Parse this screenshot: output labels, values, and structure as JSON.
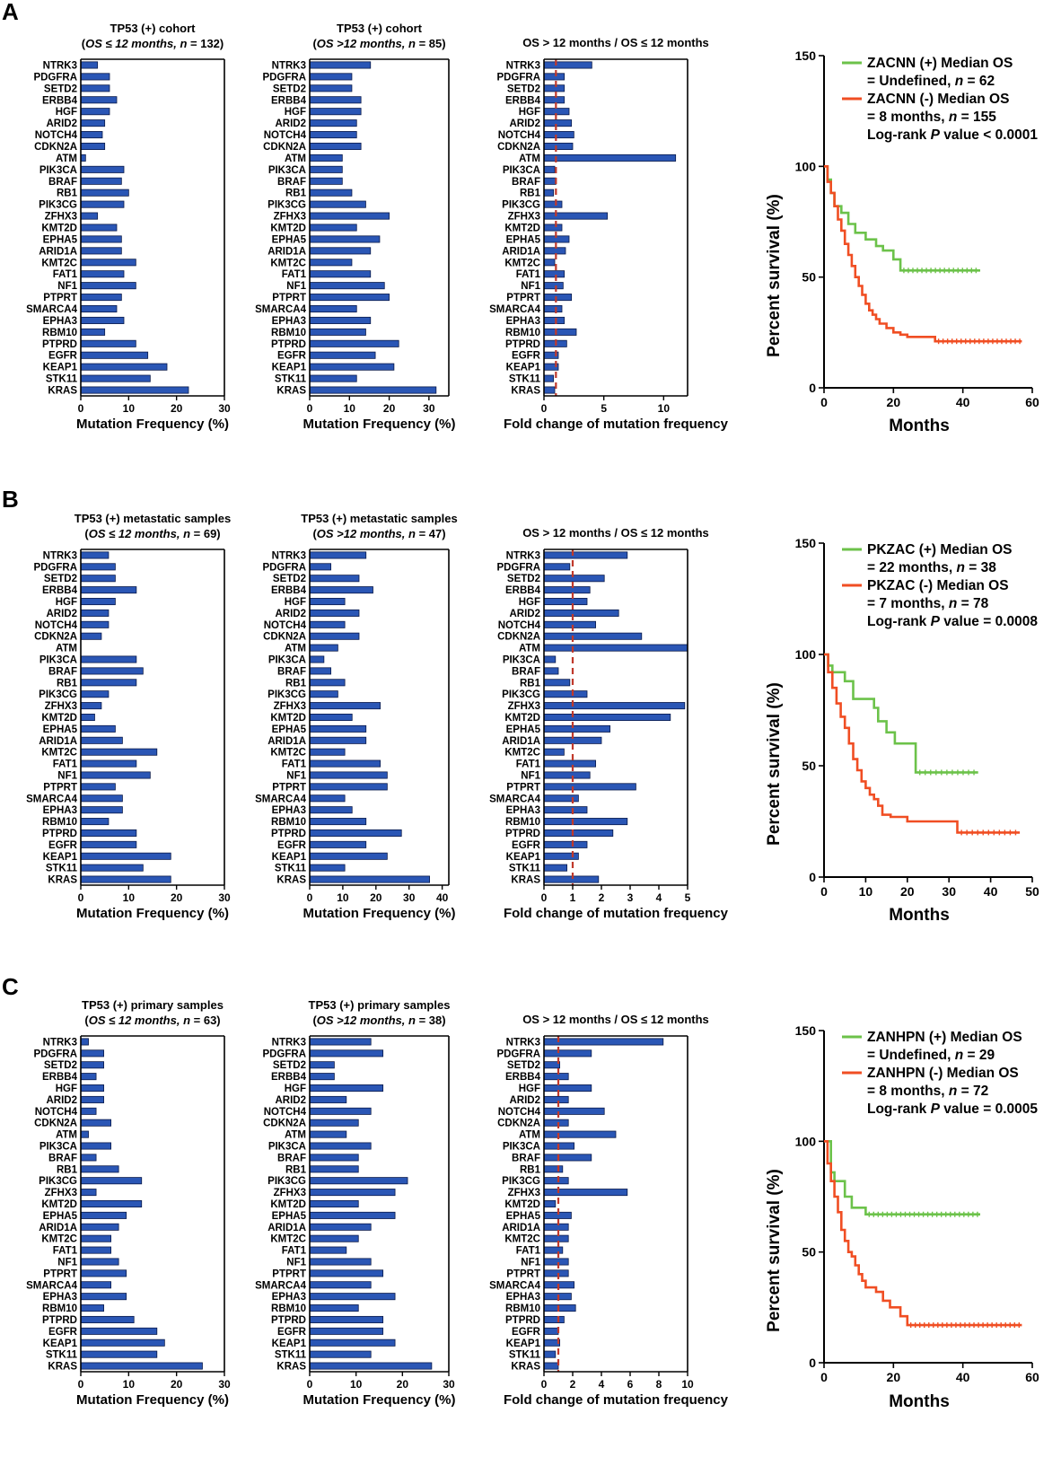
{
  "panels": [
    "A",
    "B",
    "C"
  ],
  "genes": [
    "NTRK3",
    "PDGFRA",
    "SETD2",
    "ERBB4",
    "HGF",
    "ARID2",
    "NOTCH4",
    "CDKN2A",
    "ATM",
    "PIK3CA",
    "BRAF",
    "RB1",
    "PIK3CG",
    "ZFHX3",
    "KMT2D",
    "EPHA5",
    "ARID1A",
    "KMT2C",
    "FAT1",
    "NF1",
    "PTPRT",
    "SMARCA4",
    "EPHA3",
    "RBM10",
    "PTPRD",
    "EGFR",
    "KEAP1",
    "STK11",
    "KRAS"
  ],
  "chart_data": [
    {
      "panel": "A",
      "chart": "bar1",
      "type": "bar",
      "orientation": "horizontal",
      "title_line1": "TP53 (+) cohort",
      "title_line2_italic": "OS ≤ 12 months, n",
      "title_line2_rest": " = 132)",
      "xlabel": "Mutation Frequency (%)",
      "xlim": [
        0,
        30
      ],
      "xticks": [
        "0",
        "10",
        "20",
        "30"
      ],
      "xtick_values": [
        0,
        10,
        20,
        30
      ],
      "values": [
        3.5,
        6,
        6,
        7.5,
        6,
        5,
        4.5,
        5,
        1,
        9,
        8.5,
        10,
        9,
        3.5,
        7.5,
        8.5,
        8.5,
        11.5,
        9,
        11.5,
        8.5,
        7.5,
        9,
        5,
        11.5,
        14,
        18,
        14.5,
        22.5
      ]
    },
    {
      "panel": "A",
      "chart": "bar2",
      "type": "bar",
      "orientation": "horizontal",
      "title_line1": "TP53 (+) cohort",
      "title_line2_italic": "OS >12 months, n",
      "title_line2_rest": " = 85)",
      "xlabel": "Mutation Frequency (%)",
      "xlim": [
        0,
        35
      ],
      "xticks": [
        "0",
        "10",
        "20",
        "30"
      ],
      "xtick_values": [
        0,
        10,
        20,
        30
      ],
      "values": [
        15.3,
        10.6,
        10.6,
        12.9,
        12.9,
        11.8,
        11.8,
        12.9,
        8.2,
        8.2,
        8.2,
        10.6,
        14.1,
        20,
        11.8,
        17.6,
        15.3,
        10.6,
        15.3,
        18.8,
        20,
        11.8,
        15.3,
        14.1,
        22.4,
        16.5,
        21.2,
        11.8,
        31.8
      ]
    },
    {
      "panel": "A",
      "chart": "fold",
      "type": "bar",
      "orientation": "horizontal",
      "title": "OS > 12 months / OS ≤  12 months",
      "xlabel": "Fold change of mutation frequency",
      "xlim": [
        0,
        12
      ],
      "xticks": [
        "0",
        "5",
        "10"
      ],
      "xtick_values": [
        0,
        5,
        10
      ],
      "reference_line": 1,
      "values": [
        4,
        1.7,
        1.7,
        1.7,
        2.1,
        2.3,
        2.5,
        2.4,
        11,
        0.9,
        1,
        0.8,
        1.5,
        5.3,
        1.5,
        2.1,
        1.8,
        0.9,
        1.7,
        1.6,
        2.3,
        1.5,
        1.7,
        2.7,
        1.9,
        1.2,
        1.2,
        0.8,
        0.9
      ]
    },
    {
      "panel": "A",
      "chart": "km",
      "type": "line",
      "xlabel": "Months",
      "ylabel": "Percent survival (%)",
      "xlim": [
        0,
        60
      ],
      "ylim": [
        0,
        150
      ],
      "xticks": [
        "0",
        "20",
        "40",
        "60"
      ],
      "xtick_values": [
        0,
        20,
        40,
        60
      ],
      "yticks": [
        "0",
        "50",
        "100",
        "150"
      ],
      "ytick_values": [
        0,
        50,
        100,
        150
      ],
      "legend_green_1": "ZACNN (+) Median OS",
      "legend_green_2a": "= Undefined, ",
      "legend_green_2b": "n",
      "legend_green_2c": " = 62",
      "legend_red_1": "ZACNN (-) Median OS",
      "legend_red_2a": "= 8 months, ",
      "legend_red_2b": "n",
      "legend_red_2c": " = 155",
      "legend_p_a": "Log-rank ",
      "legend_p_b": "P",
      "legend_p_c": " value < 0.0001",
      "series": [
        {
          "name": "ZACNN (+)",
          "color": "#6cc24a",
          "x": [
            0,
            1,
            1,
            2,
            2,
            3,
            3,
            5,
            5,
            7,
            7,
            9,
            9,
            12,
            12,
            15,
            15,
            17,
            17,
            20,
            20,
            22,
            22,
            45
          ],
          "y": [
            100,
            100,
            94,
            94,
            88,
            88,
            82,
            82,
            79,
            79,
            74,
            74,
            70,
            70,
            67,
            67,
            64,
            64,
            62,
            62,
            58,
            58,
            53,
            53
          ]
        },
        {
          "name": "ZACNN (-)",
          "color": "#f04e23",
          "x": [
            0,
            1,
            1,
            2,
            2,
            3,
            3,
            4,
            4,
            5,
            5,
            6,
            6,
            7,
            7,
            8,
            8,
            9,
            9,
            10,
            10,
            11,
            11,
            12,
            12,
            13,
            13,
            14,
            14,
            15,
            15,
            16,
            16,
            18,
            18,
            20,
            20,
            22,
            22,
            24,
            24,
            32,
            32,
            57
          ],
          "y": [
            100,
            100,
            93,
            93,
            88,
            88,
            82,
            82,
            76,
            76,
            71,
            71,
            65,
            65,
            60,
            60,
            55,
            55,
            50,
            50,
            46,
            46,
            42,
            42,
            38,
            38,
            35,
            35,
            33,
            33,
            31,
            31,
            29,
            29,
            27,
            27,
            25,
            25,
            24,
            24,
            23,
            23,
            21,
            21
          ]
        }
      ]
    },
    {
      "panel": "B",
      "chart": "bar1",
      "type": "bar",
      "orientation": "horizontal",
      "title_line1": "TP53 (+) metastatic samples",
      "title_line2_italic": "OS ≤ 12 months, n",
      "title_line2_rest": " = 69)",
      "xlabel": "Mutation Frequency (%)",
      "xlim": [
        0,
        30
      ],
      "xticks": [
        "0",
        "10",
        "20",
        "30"
      ],
      "xtick_values": [
        0,
        10,
        20,
        30
      ],
      "values": [
        5.8,
        7.2,
        7.2,
        11.6,
        7.2,
        5.8,
        5.8,
        4.3,
        0,
        11.6,
        13,
        11.6,
        5.8,
        4.3,
        2.9,
        7.2,
        8.7,
        15.9,
        11.6,
        14.5,
        7.2,
        8.7,
        8.7,
        5.8,
        11.6,
        11.6,
        18.8,
        13,
        18.8
      ]
    },
    {
      "panel": "B",
      "chart": "bar2",
      "type": "bar",
      "orientation": "horizontal",
      "title_line1": "TP53 (+) metastatic samples",
      "title_line2_italic": "OS >12 months, n",
      "title_line2_rest": " = 47)",
      "xlabel": "Mutation Frequency (%)",
      "xlim": [
        0,
        42
      ],
      "xticks": [
        "0",
        "10",
        "20",
        "30",
        "40"
      ],
      "xtick_values": [
        0,
        10,
        20,
        30,
        40
      ],
      "values": [
        17,
        6.4,
        14.9,
        19.1,
        10.6,
        14.9,
        10.6,
        14.9,
        8.5,
        4.3,
        6.4,
        10.6,
        8.5,
        21.3,
        12.8,
        17,
        17,
        10.6,
        21.3,
        23.4,
        23.4,
        10.6,
        12.8,
        17,
        27.7,
        17,
        23.4,
        10.6,
        36.2
      ]
    },
    {
      "panel": "B",
      "chart": "fold",
      "type": "bar",
      "orientation": "horizontal",
      "title": "OS > 12 months / OS ≤  12 months",
      "xlabel": "Fold change of mutation frequency",
      "xlim": [
        0,
        5
      ],
      "xticks": [
        "0",
        "1",
        "2",
        "3",
        "4",
        "5"
      ],
      "xtick_values": [
        0,
        1,
        2,
        3,
        4,
        5
      ],
      "reference_line": 1,
      "values": [
        2.9,
        0.9,
        2.1,
        1.6,
        1.5,
        2.6,
        1.8,
        3.4,
        5,
        0.4,
        0.5,
        0.9,
        1.5,
        4.9,
        4.4,
        2.3,
        2,
        0.7,
        1.8,
        1.6,
        3.2,
        1.2,
        1.5,
        2.9,
        2.4,
        1.5,
        1.2,
        0.8,
        1.9
      ]
    },
    {
      "panel": "B",
      "chart": "km",
      "type": "line",
      "xlabel": "Months",
      "ylabel": "Percent survival (%)",
      "xlim": [
        0,
        50
      ],
      "ylim": [
        0,
        150
      ],
      "xticks": [
        "0",
        "10",
        "20",
        "30",
        "40",
        "50"
      ],
      "xtick_values": [
        0,
        10,
        20,
        30,
        40,
        50
      ],
      "yticks": [
        "0",
        "50",
        "100",
        "150"
      ],
      "ytick_values": [
        0,
        50,
        100,
        150
      ],
      "legend_green_1": "PKZAC (+) Median OS",
      "legend_green_2a": "= 22 months, ",
      "legend_green_2b": "n",
      "legend_green_2c": " = 38",
      "legend_red_1": "PKZAC (-) Median OS",
      "legend_red_2a": "= 7 months, ",
      "legend_red_2b": "n",
      "legend_red_2c": " = 78",
      "legend_p_a": "Log-rank ",
      "legend_p_b": "P",
      "legend_p_c": " value = 0.0008",
      "series": [
        {
          "name": "PKZAC (+)",
          "color": "#6cc24a",
          "x": [
            0,
            1,
            1,
            2,
            2,
            5,
            5,
            7,
            7,
            12,
            12,
            13,
            13,
            15,
            15,
            17,
            17,
            22,
            22,
            37
          ],
          "y": [
            100,
            100,
            95,
            95,
            92,
            92,
            88,
            88,
            80,
            80,
            76,
            76,
            70,
            70,
            65,
            65,
            60,
            60,
            47,
            47
          ]
        },
        {
          "name": "PKZAC (-)",
          "color": "#f04e23",
          "x": [
            0,
            1,
            1,
            2,
            2,
            3,
            3,
            4,
            4,
            5,
            5,
            6,
            6,
            7,
            7,
            8,
            8,
            9,
            9,
            10,
            10,
            11,
            11,
            12,
            12,
            13,
            13,
            14,
            14,
            16,
            16,
            20,
            20,
            32,
            32,
            47
          ],
          "y": [
            100,
            100,
            92,
            92,
            85,
            85,
            78,
            78,
            72,
            72,
            67,
            67,
            60,
            60,
            53,
            53,
            48,
            48,
            43,
            43,
            40,
            40,
            37,
            37,
            35,
            35,
            32,
            32,
            28,
            28,
            27,
            27,
            25,
            25,
            20,
            20
          ]
        }
      ]
    },
    {
      "panel": "C",
      "chart": "bar1",
      "type": "bar",
      "orientation": "horizontal",
      "title_line1": "TP53 (+) primary samples",
      "title_line2_italic": "OS ≤ 12 months, n",
      "title_line2_rest": " = 63)",
      "xlabel": "Mutation Frequency (%)",
      "xlim": [
        0,
        30
      ],
      "xticks": [
        "0",
        "10",
        "20",
        "30"
      ],
      "xtick_values": [
        0,
        10,
        20,
        30
      ],
      "values": [
        1.6,
        4.8,
        4.8,
        3.2,
        4.8,
        4.8,
        3.2,
        6.3,
        1.6,
        6.3,
        3.2,
        7.9,
        12.7,
        3.2,
        12.7,
        9.5,
        7.9,
        6.3,
        6.3,
        7.9,
        9.5,
        6.3,
        9.5,
        4.8,
        11.1,
        15.9,
        17.5,
        15.9,
        25.4
      ]
    },
    {
      "panel": "C",
      "chart": "bar2",
      "type": "bar",
      "orientation": "horizontal",
      "title_line1": "TP53 (+) primary samples",
      "title_line2_italic": "OS >12 months, n",
      "title_line2_rest": " = 38)",
      "xlabel": "Mutation Frequency (%)",
      "xlim": [
        0,
        30
      ],
      "xticks": [
        "0",
        "10",
        "20",
        "30"
      ],
      "xtick_values": [
        0,
        10,
        20,
        30
      ],
      "values": [
        13.2,
        15.8,
        5.3,
        5.3,
        15.8,
        7.9,
        13.2,
        10.5,
        7.9,
        13.2,
        10.5,
        10.5,
        21.1,
        18.4,
        10.5,
        18.4,
        13.2,
        10.5,
        7.9,
        13.2,
        15.8,
        13.2,
        18.4,
        10.5,
        15.8,
        15.8,
        18.4,
        13.2,
        26.3
      ]
    },
    {
      "panel": "C",
      "chart": "fold",
      "type": "bar",
      "orientation": "horizontal",
      "title": "OS > 12 months / OS ≤  12 months",
      "xlabel": "Fold change of mutation frequency",
      "xlim": [
        0,
        10
      ],
      "xticks": [
        "0",
        "2",
        "4",
        "6",
        "8",
        "10"
      ],
      "xtick_values": [
        0,
        2,
        4,
        6,
        8,
        10
      ],
      "reference_line": 1,
      "values": [
        8.3,
        3.3,
        1.1,
        1.7,
        3.3,
        1.7,
        4.2,
        1.7,
        5,
        2.1,
        3.3,
        1.3,
        1.7,
        5.8,
        0.8,
        1.9,
        1.7,
        1.7,
        1.3,
        1.7,
        1.7,
        2.1,
        1.9,
        2.2,
        1.4,
        1,
        1.1,
        0.8,
        1
      ]
    },
    {
      "panel": "C",
      "chart": "km",
      "type": "line",
      "xlabel": "Months",
      "ylabel": "Percent survival (%)",
      "xlim": [
        0,
        60
      ],
      "ylim": [
        0,
        150
      ],
      "xticks": [
        "0",
        "20",
        "40",
        "60"
      ],
      "xtick_values": [
        0,
        20,
        40,
        60
      ],
      "yticks": [
        "0",
        "50",
        "100",
        "150"
      ],
      "ytick_values": [
        0,
        50,
        100,
        150
      ],
      "legend_green_1": "ZANHPN (+) Median OS",
      "legend_green_2a": "= Undefined, ",
      "legend_green_2b": "n",
      "legend_green_2c": " = 29",
      "legend_red_1": "ZANHPN (-) Median OS",
      "legend_red_2a": "= 8 months, ",
      "legend_red_2b": "n",
      "legend_red_2c": " = 72",
      "legend_p_a": "Log-rank ",
      "legend_p_b": "P",
      "legend_p_c": " value = 0.0005",
      "series": [
        {
          "name": "ZANHPN (+)",
          "color": "#6cc24a",
          "x": [
            0,
            2,
            2,
            3,
            3,
            6,
            6,
            8,
            8,
            12,
            12,
            45
          ],
          "y": [
            100,
            100,
            86,
            86,
            82,
            82,
            75,
            75,
            70,
            70,
            67,
            67
          ]
        },
        {
          "name": "ZANHPN (-)",
          "color": "#f04e23",
          "x": [
            0,
            1,
            1,
            2,
            2,
            3,
            3,
            4,
            4,
            5,
            5,
            6,
            6,
            7,
            7,
            8,
            8,
            9,
            9,
            10,
            10,
            11,
            11,
            12,
            12,
            15,
            15,
            17,
            17,
            19,
            19,
            22,
            22,
            24,
            24,
            57
          ],
          "y": [
            100,
            100,
            90,
            90,
            82,
            82,
            75,
            75,
            68,
            68,
            60,
            60,
            55,
            55,
            50,
            50,
            48,
            48,
            44,
            44,
            40,
            40,
            37,
            37,
            34,
            34,
            32,
            32,
            28,
            28,
            25,
            25,
            21,
            21,
            17,
            17
          ]
        }
      ]
    }
  ]
}
